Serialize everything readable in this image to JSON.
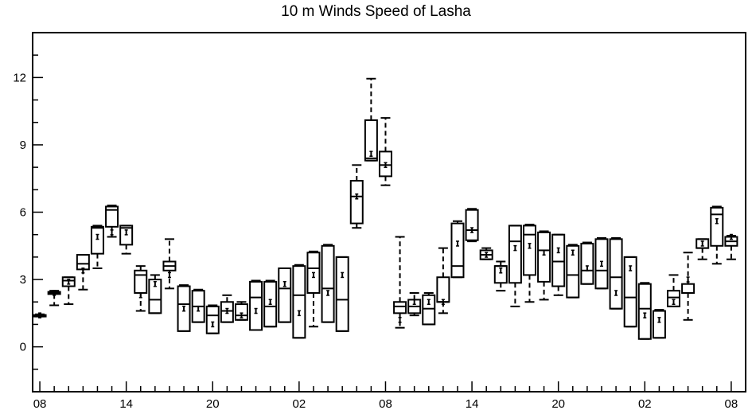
{
  "chart_data": {
    "type": "boxplot",
    "title": "10 m Winds Speed of Lasha",
    "xlabel": "",
    "ylabel": "",
    "ylim": [
      -2,
      14
    ],
    "y_ticks": [
      0,
      3,
      6,
      9,
      12
    ],
    "y_tick_labels": [
      "0",
      "3",
      "6",
      "9",
      "12"
    ],
    "x_tick_labels": [
      "08",
      "14",
      "20",
      "02",
      "08",
      "14",
      "20",
      "02",
      "08"
    ],
    "x_tick_hours": [
      0,
      6,
      12,
      18,
      24,
      30,
      36,
      42,
      48
    ],
    "x_range_hours": [
      -0.5,
      49
    ],
    "boxes": [
      {
        "hour": 0,
        "min": 1.35,
        "q1": 1.35,
        "median": 1.4,
        "mean": 1.4,
        "q3": 1.42,
        "max": 1.45
      },
      {
        "hour": 1,
        "min": 1.85,
        "q1": 2.35,
        "median": 2.4,
        "mean": 2.4,
        "q3": 2.45,
        "max": 2.5
      },
      {
        "hour": 2,
        "min": 1.9,
        "q1": 2.7,
        "median": 2.95,
        "mean": 2.9,
        "q3": 3.1,
        "max": 3.1
      },
      {
        "hour": 3,
        "min": 2.55,
        "q1": 3.45,
        "median": 3.7,
        "mean": 3.4,
        "q3": 4.1,
        "max": 4.1
      },
      {
        "hour": 4,
        "min": 3.5,
        "q1": 4.15,
        "median": 5.3,
        "mean": 4.9,
        "q3": 5.35,
        "max": 5.4
      },
      {
        "hour": 5,
        "min": 4.9,
        "q1": 5.35,
        "median": 6.1,
        "mean": 5.1,
        "q3": 6.25,
        "max": 6.3
      },
      {
        "hour": 6,
        "min": 4.15,
        "q1": 4.55,
        "median": 5.3,
        "mean": 5.1,
        "q3": 5.4,
        "max": 5.4
      },
      {
        "hour": 7,
        "min": 1.6,
        "q1": 2.4,
        "median": 3.2,
        "mean": 2.3,
        "q3": 3.4,
        "max": 3.6
      },
      {
        "hour": 8,
        "min": 1.5,
        "q1": 1.5,
        "median": 2.1,
        "mean": 2.8,
        "q3": 3.0,
        "max": 3.2
      },
      {
        "hour": 9,
        "min": 2.6,
        "q1": 3.4,
        "median": 3.6,
        "mean": 3.2,
        "q3": 3.8,
        "max": 4.8
      },
      {
        "hour": 10,
        "min": 0.7,
        "q1": 0.7,
        "median": 1.9,
        "mean": 1.7,
        "q3": 2.7,
        "max": 2.75
      },
      {
        "hour": 11,
        "min": 1.1,
        "q1": 1.1,
        "median": 1.8,
        "mean": 1.7,
        "q3": 2.5,
        "max": 2.55
      },
      {
        "hour": 12,
        "min": 0.6,
        "q1": 0.6,
        "median": 1.4,
        "mean": 1.0,
        "q3": 1.8,
        "max": 1.85
      },
      {
        "hour": 13,
        "min": 1.1,
        "q1": 1.1,
        "median": 1.6,
        "mean": 1.6,
        "q3": 2.0,
        "max": 2.3
      },
      {
        "hour": 14,
        "min": 1.2,
        "q1": 1.2,
        "median": 1.4,
        "mean": 1.4,
        "q3": 1.9,
        "max": 2.0
      },
      {
        "hour": 15,
        "min": 0.75,
        "q1": 0.75,
        "median": 2.2,
        "mean": 1.6,
        "q3": 2.9,
        "max": 2.95
      },
      {
        "hour": 16,
        "min": 0.9,
        "q1": 0.9,
        "median": 1.8,
        "mean": 2.0,
        "q3": 2.9,
        "max": 2.95
      },
      {
        "hour": 17,
        "min": 1.1,
        "q1": 1.1,
        "median": 2.6,
        "mean": 2.8,
        "q3": 3.5,
        "max": 3.5
      },
      {
        "hour": 18,
        "min": 0.4,
        "q1": 0.4,
        "median": 2.3,
        "mean": 1.5,
        "q3": 3.6,
        "max": 3.65
      },
      {
        "hour": 19,
        "min": 0.9,
        "q1": 2.4,
        "median": 3.5,
        "mean": 3.2,
        "q3": 4.2,
        "max": 4.25
      },
      {
        "hour": 20,
        "min": 1.1,
        "q1": 1.1,
        "median": 2.6,
        "mean": 2.4,
        "q3": 4.5,
        "max": 4.55
      },
      {
        "hour": 21,
        "min": 0.7,
        "q1": 0.7,
        "median": 2.1,
        "mean": 3.2,
        "q3": 4.0,
        "max": 4.0
      },
      {
        "hour": 22,
        "min": 5.3,
        "q1": 5.5,
        "median": 6.7,
        "mean": 6.7,
        "q3": 7.4,
        "max": 8.1
      },
      {
        "hour": 23,
        "min": 8.3,
        "q1": 8.3,
        "median": 8.4,
        "mean": 8.6,
        "q3": 10.1,
        "max": 11.95
      },
      {
        "hour": 24,
        "min": 7.2,
        "q1": 7.6,
        "median": 8.1,
        "mean": 8.1,
        "q3": 8.7,
        "max": 10.2
      },
      {
        "hour": 25,
        "min": 0.85,
        "q1": 1.5,
        "median": 1.8,
        "mean": 1.2,
        "q3": 2.0,
        "max": 4.9
      },
      {
        "hour": 26,
        "min": 1.4,
        "q1": 1.5,
        "median": 1.8,
        "mean": 2.0,
        "q3": 2.1,
        "max": 2.4
      },
      {
        "hour": 27,
        "min": 1.0,
        "q1": 1.0,
        "median": 1.7,
        "mean": 2.0,
        "q3": 2.3,
        "max": 2.4
      },
      {
        "hour": 28,
        "min": 1.5,
        "q1": 2.0,
        "median": 2.0,
        "mean": 2.0,
        "q3": 3.1,
        "max": 4.4
      },
      {
        "hour": 29,
        "min": 3.1,
        "q1": 3.1,
        "median": 3.6,
        "mean": 4.6,
        "q3": 5.5,
        "max": 5.6
      },
      {
        "hour": 30,
        "min": 4.7,
        "q1": 4.75,
        "median": 5.2,
        "mean": 5.2,
        "q3": 6.1,
        "max": 6.15
      },
      {
        "hour": 31,
        "min": 3.9,
        "q1": 3.9,
        "median": 4.1,
        "mean": 4.1,
        "q3": 4.3,
        "max": 4.4
      },
      {
        "hour": 32,
        "min": 2.5,
        "q1": 2.85,
        "median": 3.6,
        "mean": 3.4,
        "q3": 3.6,
        "max": 3.8
      },
      {
        "hour": 33,
        "min": 1.8,
        "q1": 2.85,
        "median": 4.7,
        "mean": 4.4,
        "q3": 5.4,
        "max": 5.4
      },
      {
        "hour": 34,
        "min": 2.0,
        "q1": 3.2,
        "median": 5.0,
        "mean": 4.5,
        "q3": 5.4,
        "max": 5.45
      },
      {
        "hour": 35,
        "min": 2.1,
        "q1": 2.9,
        "median": 4.3,
        "mean": 4.2,
        "q3": 5.1,
        "max": 5.15
      },
      {
        "hour": 36,
        "min": 2.3,
        "q1": 2.7,
        "median": 3.8,
        "mean": 4.3,
        "q3": 5.0,
        "max": 5.0
      },
      {
        "hour": 37,
        "min": 2.2,
        "q1": 2.2,
        "median": 3.2,
        "mean": 4.2,
        "q3": 4.5,
        "max": 4.55
      },
      {
        "hour": 38,
        "min": 2.8,
        "q1": 2.8,
        "median": 3.4,
        "mean": 3.5,
        "q3": 4.6,
        "max": 4.65
      },
      {
        "hour": 39,
        "min": 2.6,
        "q1": 2.6,
        "median": 3.4,
        "mean": 3.7,
        "q3": 4.8,
        "max": 4.85
      },
      {
        "hour": 40,
        "min": 1.7,
        "q1": 1.7,
        "median": 3.1,
        "mean": 2.4,
        "q3": 4.8,
        "max": 4.85
      },
      {
        "hour": 41,
        "min": 0.9,
        "q1": 0.9,
        "median": 2.2,
        "mean": 3.5,
        "q3": 4.0,
        "max": 4.0
      },
      {
        "hour": 42,
        "min": 0.35,
        "q1": 0.35,
        "median": 1.7,
        "mean": 1.4,
        "q3": 2.8,
        "max": 2.85
      },
      {
        "hour": 43,
        "min": 0.4,
        "q1": 0.4,
        "median": 1.6,
        "mean": 1.2,
        "q3": 1.6,
        "max": 1.65
      },
      {
        "hour": 44,
        "min": 1.8,
        "q1": 1.8,
        "median": 2.2,
        "mean": 2.0,
        "q3": 2.5,
        "max": 3.2
      },
      {
        "hour": 45,
        "min": 1.2,
        "q1": 2.4,
        "median": 2.4,
        "mean": 3.0,
        "q3": 2.8,
        "max": 4.2
      },
      {
        "hour": 46,
        "min": 3.9,
        "q1": 4.4,
        "median": 4.4,
        "mean": 4.6,
        "q3": 4.8,
        "max": 4.8
      },
      {
        "hour": 47,
        "min": 3.7,
        "q1": 4.5,
        "median": 5.9,
        "mean": 5.6,
        "q3": 6.2,
        "max": 6.25
      },
      {
        "hour": 48,
        "min": 3.9,
        "q1": 4.5,
        "median": 4.7,
        "mean": 4.9,
        "q3": 4.9,
        "max": 4.95
      }
    ],
    "grid": false,
    "legend": "none"
  }
}
